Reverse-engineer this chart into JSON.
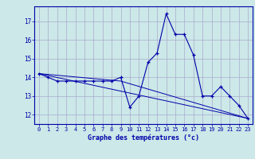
{
  "title": "Graphe des températures (°c)",
  "background_color": "#cce8e8",
  "grid_color": "#aaaacc",
  "line_color": "#0000aa",
  "x_labels": [
    "0",
    "1",
    "2",
    "3",
    "4",
    "5",
    "6",
    "7",
    "8",
    "9",
    "10",
    "11",
    "12",
    "13",
    "14",
    "15",
    "16",
    "17",
    "18",
    "19",
    "20",
    "21",
    "22",
    "23"
  ],
  "ylim": [
    11.5,
    17.8
  ],
  "yticks": [
    12,
    13,
    14,
    15,
    16,
    17
  ],
  "series1": {
    "x": [
      0,
      1,
      2,
      3,
      4,
      5,
      6,
      7,
      8,
      9,
      10,
      11,
      12,
      13,
      14,
      15,
      16,
      17,
      18,
      19,
      20,
      21,
      22,
      23
    ],
    "y": [
      14.2,
      14.0,
      13.8,
      13.8,
      13.8,
      13.8,
      13.8,
      13.8,
      13.8,
      14.0,
      12.4,
      13.0,
      14.8,
      15.3,
      17.4,
      16.3,
      16.3,
      15.2,
      13.0,
      13.0,
      13.5,
      13.0,
      12.5,
      11.8
    ]
  },
  "series2_trend": {
    "x": [
      0,
      23
    ],
    "y": [
      14.2,
      11.8
    ]
  },
  "series3_trend": {
    "x": [
      0,
      9,
      23
    ],
    "y": [
      14.2,
      13.8,
      11.8
    ]
  }
}
